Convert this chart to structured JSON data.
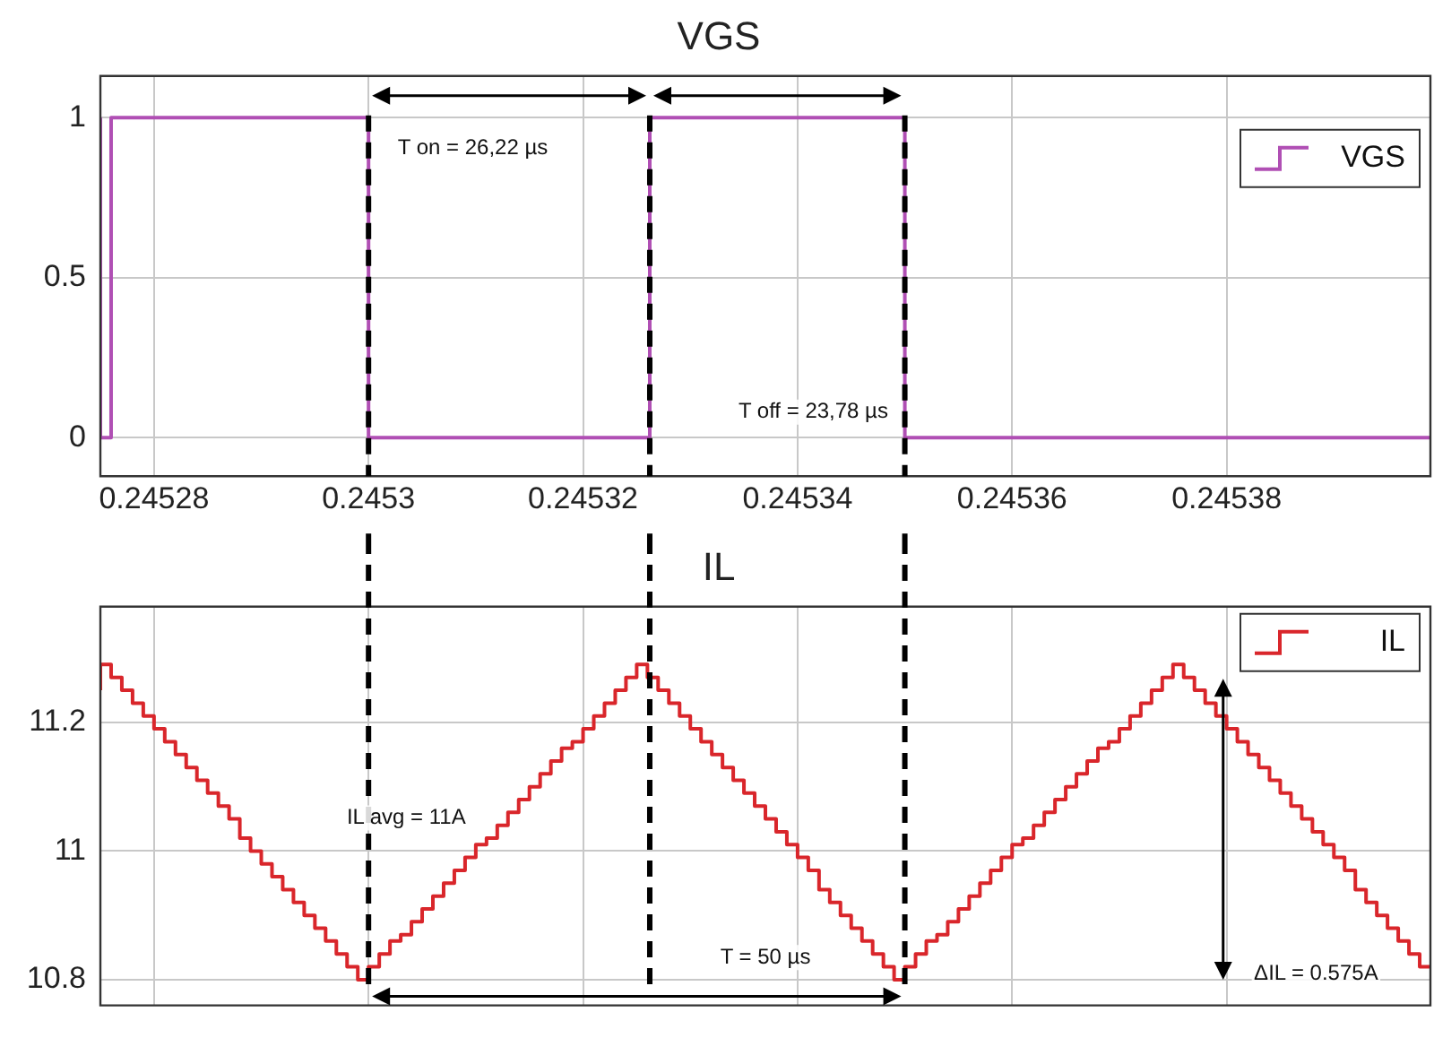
{
  "chart_data": [
    {
      "type": "step",
      "title": "VGS",
      "xlim": [
        0.245275,
        0.245399
      ],
      "xticks": [
        0.24528,
        0.2453,
        0.24532,
        0.24534,
        0.24536,
        0.24538
      ],
      "ylim": [
        -0.12,
        1.13
      ],
      "yticks": [
        0,
        0.5,
        1
      ],
      "grid": true,
      "legend": "top right",
      "marker": "none",
      "series": [
        {
          "name": "VGS",
          "color": "#b04fb4",
          "x": [
            0.245275,
            0.245276,
            0.2453,
            0.24532622,
            0.24535,
            0.24537622,
            0.245399
          ],
          "values": [
            1,
            0,
            1,
            0,
            1,
            0,
            0
          ]
        }
      ],
      "ref_lines": [
        {
          "axis": "x",
          "value": 0.2453,
          "color": "#000000",
          "line_style": "dashed"
        },
        {
          "axis": "x",
          "value": 0.24532622,
          "color": "#000000",
          "line_style": "dashed"
        },
        {
          "axis": "x",
          "value": 0.24535,
          "color": "#000000",
          "line_style": "dashed"
        }
      ],
      "annotations": [
        "T on = 26,22 µs",
        "T off = 23,78 µs"
      ]
    },
    {
      "type": "step",
      "title": "IL",
      "xlim": [
        0.245275,
        0.245399
      ],
      "xticks": [
        0.24528,
        0.2453,
        0.24532,
        0.24534,
        0.24536,
        0.24538
      ],
      "ylim": [
        10.76,
        11.38
      ],
      "yticks": [
        10.8,
        11,
        11.2
      ],
      "grid": true,
      "legend": "top right",
      "marker": "none",
      "tick_labels": "y",
      "series": [
        {
          "name": "IL",
          "color": "#d9262b",
          "x": [
            0.245275,
            0.245276,
            0.245277,
            0.245278,
            0.245279,
            0.24528,
            0.245281,
            0.245282,
            0.245283,
            0.245284,
            0.245285,
            0.245286,
            0.245287,
            0.245288,
            0.245289,
            0.24529,
            0.245291,
            0.245292,
            0.245293,
            0.245294,
            0.245295,
            0.245296,
            0.245297,
            0.245298,
            0.245299,
            0.2453,
            0.245301,
            0.245302,
            0.245303,
            0.245304,
            0.245305,
            0.245306,
            0.245307,
            0.245308,
            0.245309,
            0.24531,
            0.245311,
            0.245312,
            0.245313,
            0.245314,
            0.245315,
            0.245316,
            0.245317,
            0.245318,
            0.245319,
            0.24532,
            0.245321,
            0.245322,
            0.245323,
            0.245324,
            0.245325,
            0.245326,
            0.245327,
            0.245328,
            0.245329,
            0.24533,
            0.245331,
            0.245332,
            0.245333,
            0.245334,
            0.245335,
            0.245336,
            0.245337,
            0.245338,
            0.245339,
            0.24534,
            0.245341,
            0.245342,
            0.245343,
            0.245344,
            0.245345,
            0.245346,
            0.245347,
            0.245348,
            0.245349,
            0.24535,
            0.245351,
            0.245352,
            0.245353,
            0.245354,
            0.245355,
            0.245356,
            0.245357,
            0.245358,
            0.245359,
            0.24536,
            0.245361,
            0.245362,
            0.245363,
            0.245364,
            0.245365,
            0.245366,
            0.245367,
            0.245368,
            0.245369,
            0.24537,
            0.245371,
            0.245372,
            0.245373,
            0.245374,
            0.245375,
            0.245376,
            0.245377,
            0.245378,
            0.245379,
            0.24538,
            0.245381,
            0.245382,
            0.245383,
            0.245384,
            0.245385,
            0.245386,
            0.245387,
            0.245388,
            0.245389,
            0.24539,
            0.245391,
            0.245392,
            0.245393,
            0.245394,
            0.245395,
            0.245396,
            0.245397,
            0.245398,
            0.245399
          ],
          "values": [
            11.25,
            11.29,
            11.27,
            11.25,
            11.23,
            11.21,
            11.19,
            11.17,
            11.15,
            11.13,
            11.11,
            11.09,
            11.07,
            11.05,
            11.02,
            11.0,
            10.98,
            10.96,
            10.94,
            10.92,
            10.9,
            10.88,
            10.86,
            10.84,
            10.82,
            10.8,
            10.82,
            10.84,
            10.86,
            10.87,
            10.89,
            10.91,
            10.93,
            10.95,
            10.97,
            10.99,
            11.01,
            11.02,
            11.04,
            11.06,
            11.08,
            11.1,
            11.12,
            11.14,
            11.16,
            11.17,
            11.19,
            11.21,
            11.23,
            11.25,
            11.27,
            11.29,
            11.27,
            11.25,
            11.23,
            11.21,
            11.19,
            11.17,
            11.15,
            11.13,
            11.11,
            11.09,
            11.07,
            11.05,
            11.03,
            11.01,
            10.99,
            10.97,
            10.94,
            10.92,
            10.9,
            10.88,
            10.86,
            10.84,
            10.82,
            10.8,
            10.82,
            10.84,
            10.86,
            10.87,
            10.89,
            10.91,
            10.93,
            10.95,
            10.97,
            10.99,
            11.01,
            11.02,
            11.04,
            11.06,
            11.08,
            11.1,
            11.12,
            11.14,
            11.16,
            11.17,
            11.19,
            11.21,
            11.23,
            11.25,
            11.27,
            11.29,
            11.27,
            11.25,
            11.23,
            11.21,
            11.19,
            11.17,
            11.15,
            11.13,
            11.11,
            11.09,
            11.07,
            11.05,
            11.03,
            11.01,
            10.99,
            10.97,
            10.94,
            10.92,
            10.9,
            10.88,
            10.86,
            10.84,
            10.82
          ]
        }
      ],
      "ref_lines": [
        {
          "axis": "x",
          "value": 0.2453,
          "color": "#000000",
          "line_style": "dashed"
        },
        {
          "axis": "x",
          "value": 0.24532622,
          "color": "#000000",
          "line_style": "dashed"
        },
        {
          "axis": "x",
          "value": 0.24535,
          "color": "#000000",
          "line_style": "dashed"
        }
      ],
      "annotations": [
        "IL avg = 11A",
        "T = 50 µs",
        "ΔIL = 0.575A"
      ]
    }
  ]
}
